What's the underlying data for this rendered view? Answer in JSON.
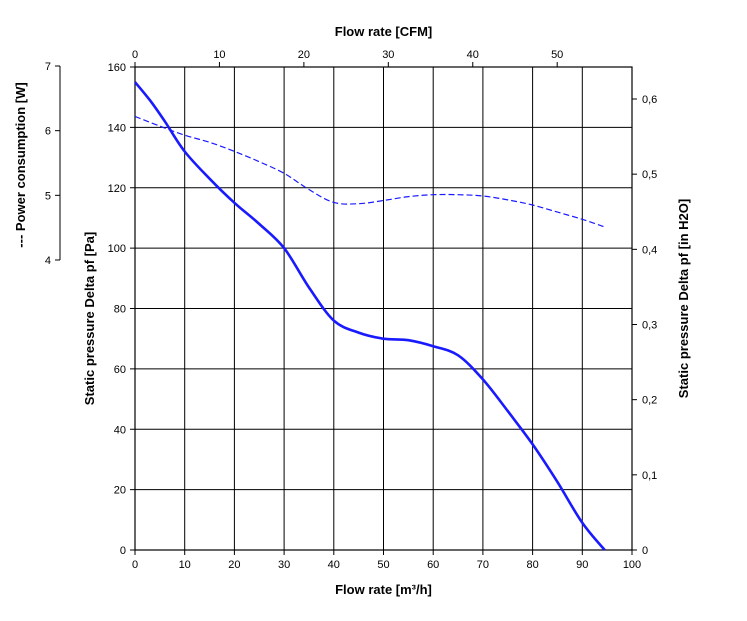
{
  "chart_data": {
    "type": "line",
    "x_axis_bottom": {
      "label": "Flow rate [m³/h]",
      "min": 0,
      "max": 100,
      "ticks": [
        0,
        10,
        20,
        30,
        40,
        50,
        60,
        70,
        80,
        90,
        100
      ]
    },
    "x_axis_top": {
      "label": "Flow rate [CFM]",
      "ticks": [
        0,
        10,
        20,
        30,
        40,
        50
      ],
      "m3h_per_cfm": 1.699
    },
    "y_axis_left": {
      "label": "Static pressure Delta pf [Pa]",
      "min": 0,
      "max": 160,
      "ticks": [
        0,
        20,
        40,
        60,
        80,
        100,
        120,
        140,
        160
      ]
    },
    "y_axis_right": {
      "label": "Static pressure Delta pf [in H2O]",
      "tick_labels": [
        "0",
        "0,1",
        "0,2",
        "0,3",
        "0,4",
        "0,5",
        "0,6"
      ],
      "tick_values_pa": [
        0,
        24.9,
        49.8,
        74.7,
        99.6,
        124.5,
        149.4
      ]
    },
    "y_axis_power": {
      "label": "--- Power consumption [W]",
      "tick_labels": [
        "4",
        "5",
        "6",
        "7"
      ],
      "min": 4,
      "max": 7
    },
    "grid": true,
    "series": [
      {
        "name": "Static pressure",
        "axis": "pressure",
        "style": "solid",
        "color": "#1a1aff",
        "x": [
          0,
          3,
          6,
          10,
          15,
          20,
          25,
          30,
          35,
          40,
          45,
          50,
          55,
          60,
          65,
          70,
          75,
          80,
          85,
          90,
          94.5
        ],
        "y": [
          155,
          149,
          142,
          132,
          123,
          115,
          108,
          100,
          87,
          76,
          72,
          70,
          69.5,
          67.5,
          64.5,
          56.5,
          46,
          35,
          22.5,
          9,
          0
        ]
      },
      {
        "name": "Power consumption",
        "axis": "power",
        "style": "dashed",
        "color": "#1a1aff",
        "x": [
          0,
          5,
          10,
          15,
          20,
          25,
          30,
          35,
          40,
          45,
          50,
          55,
          60,
          65,
          70,
          75,
          80,
          85,
          90,
          94.5
        ],
        "y": [
          6.22,
          6.07,
          5.93,
          5.82,
          5.68,
          5.52,
          5.34,
          5.09,
          4.89,
          4.87,
          4.92,
          4.98,
          5.01,
          5.01,
          4.99,
          4.93,
          4.85,
          4.74,
          4.63,
          4.51
        ]
      }
    ]
  }
}
